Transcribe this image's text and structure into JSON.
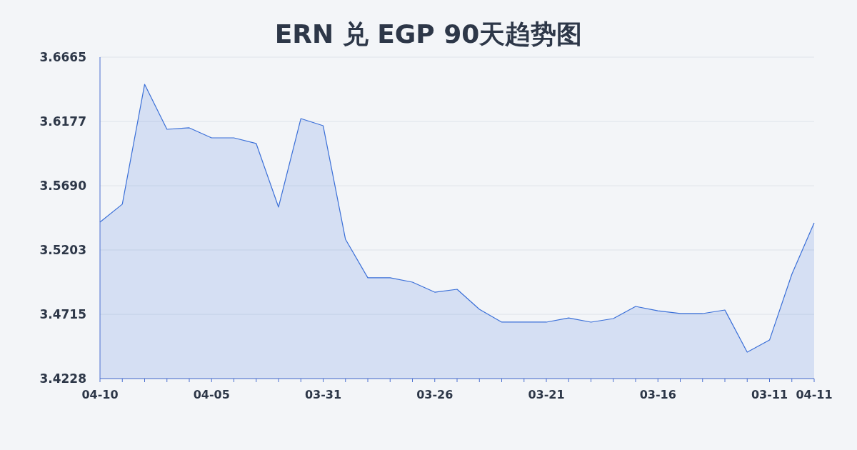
{
  "chart_data": {
    "type": "area",
    "title": "ERN 兑 EGP 90天趋势图",
    "categories": [
      "04-10",
      null,
      null,
      null,
      null,
      "04-05",
      null,
      null,
      null,
      null,
      "03-31",
      null,
      null,
      null,
      null,
      "03-26",
      null,
      null,
      null,
      null,
      "03-21",
      null,
      null,
      null,
      null,
      "03-16",
      null,
      null,
      null,
      null,
      "03-11",
      null,
      "04-11"
    ],
    "values": [
      3.5414,
      3.555,
      3.6459,
      3.6118,
      3.6129,
      3.6053,
      3.6053,
      3.601,
      3.5528,
      3.6199,
      3.6145,
      3.5284,
      3.4992,
      3.4992,
      3.4959,
      3.4883,
      3.4905,
      3.4753,
      3.4656,
      3.4656,
      3.4656,
      3.4688,
      3.4656,
      3.4683,
      3.4775,
      3.4742,
      3.4721,
      3.4721,
      3.4748,
      3.4428,
      3.452,
      3.5019,
      3.5409
    ],
    "color": "#3a6fd8",
    "ylim": [
      3.4228,
      3.6665
    ],
    "yticks": [
      3.4228,
      3.4715,
      3.5203,
      {
        "value": 3.569,
        "label": "3.5690"
      },
      3.6177,
      3.6665
    ],
    "grid": "y"
  }
}
